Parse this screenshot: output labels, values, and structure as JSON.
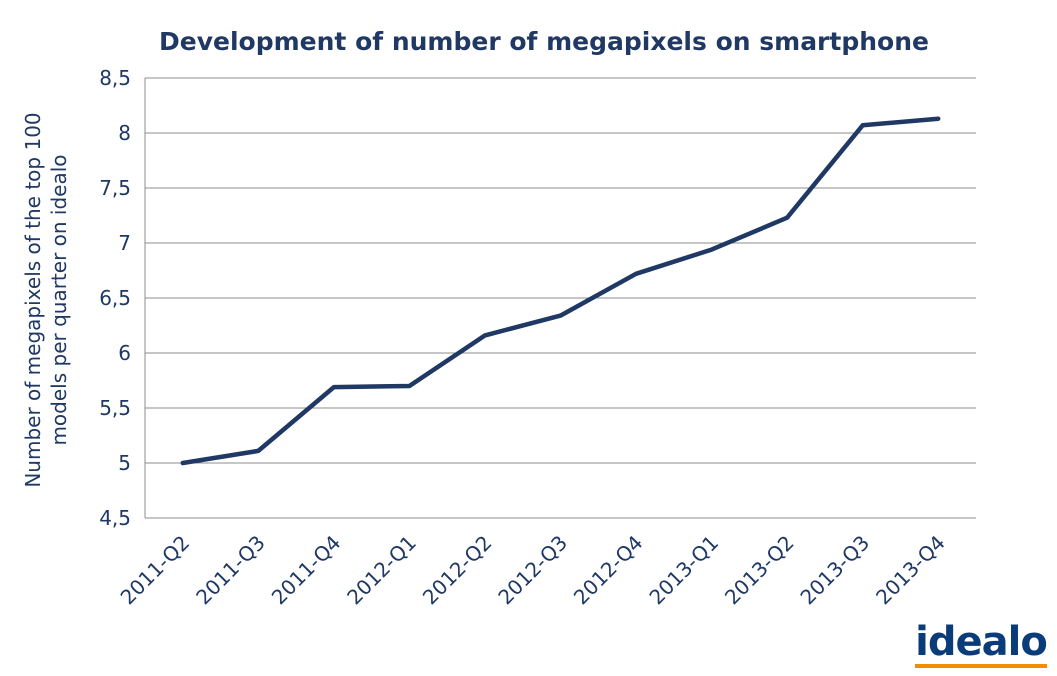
{
  "chart_data": {
    "type": "line",
    "title": "Development of number of megapixels on smartphone",
    "ylabel": "Number of megapixels of the top 100 models per quarter on idealo",
    "ylabel_lines": [
      "Number of megapixels of the top 100",
      "models per quarter on idealo"
    ],
    "xlabel": "",
    "categories": [
      "2011-Q2",
      "2011-Q3",
      "2011-Q4",
      "2012-Q1",
      "2012-Q2",
      "2012-Q3",
      "2012-Q4",
      "2013-Q1",
      "2013-Q2",
      "2013-Q3",
      "2013-Q4"
    ],
    "series": [
      {
        "values": [
          5.0,
          5.11,
          5.69,
          5.7,
          6.16,
          6.34,
          6.72,
          6.94,
          7.23,
          8.07,
          8.13
        ]
      }
    ],
    "ylim": [
      4.5,
      8.5
    ],
    "yticks": [
      4.5,
      5,
      5.5,
      6,
      6.5,
      7,
      7.5,
      8,
      8.5
    ],
    "ytick_labels": [
      "4,5",
      "5",
      "5,5",
      "6",
      "6,5",
      "7",
      "7,5",
      "8",
      "8,5"
    ],
    "grid": true,
    "legend": "none",
    "line_color": "#1f3864"
  },
  "logo": {
    "text": "idealo",
    "text_color": "#0b3c7a",
    "bar_color": "#f28c00"
  }
}
